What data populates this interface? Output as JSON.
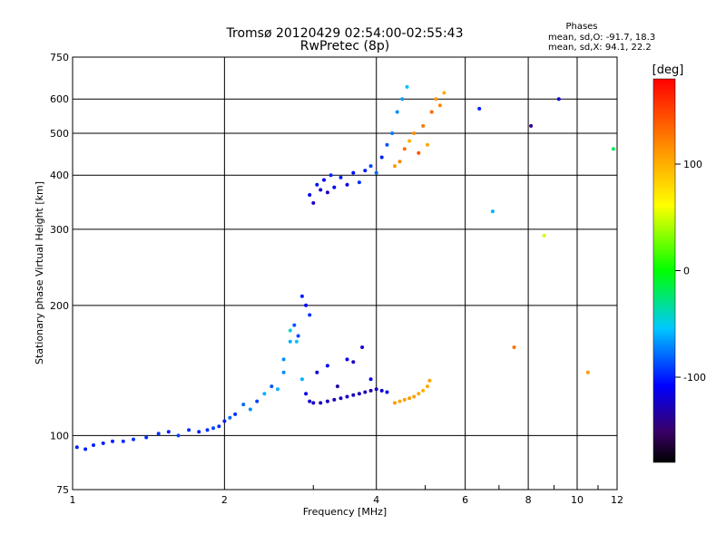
{
  "chart_data": {
    "type": "scatter",
    "title": "Tromsø 20120429 02:54:00-02:55:43",
    "subtitle": "RwPretec (8p)",
    "xlabel": "Frequency [MHz]",
    "ylabel": "Stationary phase Virtual Height [km]",
    "x_scale": "log",
    "y_scale": "log",
    "xlim": [
      1,
      12
    ],
    "ylim": [
      75,
      750
    ],
    "x_ticks": [
      1,
      2,
      4,
      6,
      8,
      10,
      12
    ],
    "x_tick_labels": [
      "1",
      "2",
      "4",
      "6",
      "8",
      "10",
      "12"
    ],
    "y_ticks": [
      75,
      100,
      200,
      300,
      400,
      500,
      600,
      750
    ],
    "y_tick_labels": [
      "75",
      "100",
      "200",
      "300",
      "400",
      "500",
      "600",
      "750"
    ],
    "grid": true,
    "phases_box": {
      "heading": "Phases",
      "line_o": "mean, sd,O: -91.7, 18.3",
      "line_x": "mean, sd,X:  94.1, 22.2"
    },
    "colorbar": {
      "label": "[deg]",
      "range": [
        -180,
        180
      ],
      "ticks": [
        100,
        0,
        -100
      ],
      "tick_labels": [
        "100",
        "0",
        "-100"
      ]
    },
    "series": [
      {
        "x": [
          1.02,
          1.06,
          1.1,
          1.15,
          1.2,
          1.26,
          1.32,
          1.4,
          1.48,
          1.55,
          1.62,
          1.7,
          1.78,
          1.85,
          1.9,
          1.95,
          2.0,
          2.05,
          2.1,
          2.18,
          2.25,
          2.32,
          2.4,
          2.48,
          2.55,
          2.62,
          2.7,
          2.78,
          2.85,
          2.9,
          2.95,
          3.0,
          3.1,
          3.2,
          3.3,
          3.4,
          3.5,
          3.6,
          3.7,
          3.8,
          3.9,
          4.0,
          4.1,
          4.2
        ],
        "y": [
          94,
          93,
          95,
          96,
          97,
          97,
          98,
          99,
          101,
          102,
          100,
          103,
          102,
          103,
          104,
          105,
          108,
          110,
          112,
          118,
          115,
          120,
          125,
          130,
          128,
          140,
          175,
          165,
          135,
          125,
          120,
          119,
          119,
          120,
          121,
          122,
          123,
          124,
          125,
          126,
          127,
          128,
          127,
          126
        ],
        "phase": [
          -100,
          -100,
          -100,
          -100,
          -100,
          -95,
          -95,
          -95,
          -95,
          -100,
          -90,
          -95,
          -100,
          -95,
          -90,
          -95,
          -100,
          -80,
          -95,
          -80,
          -70,
          -90,
          -60,
          -85,
          -60,
          -70,
          -45,
          -55,
          -60,
          -115,
          -120,
          -125,
          -125,
          -125,
          -130,
          -125,
          -125,
          -125,
          -125,
          -130,
          -130,
          -125,
          -120,
          -115
        ]
      },
      {
        "x": [
          2.62,
          2.7,
          2.75,
          2.8,
          2.85,
          2.9,
          2.95,
          3.05,
          3.2,
          3.35,
          3.5,
          3.6,
          3.75,
          3.9
        ],
        "y": [
          150,
          165,
          180,
          170,
          210,
          200,
          190,
          140,
          145,
          130,
          150,
          148,
          160,
          135
        ],
        "phase": [
          -70,
          -60,
          -85,
          -90,
          -100,
          -110,
          -95,
          -120,
          -110,
          -135,
          -110,
          -125,
          -120,
          -115
        ]
      },
      {
        "x": [
          4.35,
          4.45,
          4.55,
          4.65,
          4.75,
          4.85,
          4.95,
          5.05,
          5.1
        ],
        "y": [
          119,
          120,
          121,
          122,
          123,
          125,
          127,
          130,
          134
        ],
        "phase": [
          110,
          105,
          108,
          110,
          106,
          104,
          100,
          102,
          106
        ]
      },
      {
        "x": [
          2.95,
          3.0,
          3.05,
          3.1,
          3.15,
          3.2,
          3.25,
          3.3,
          3.4,
          3.5,
          3.6,
          3.7,
          3.8,
          3.9,
          4.0,
          4.1,
          4.2,
          4.3,
          4.4,
          4.5,
          4.6
        ],
        "y": [
          360,
          345,
          380,
          370,
          390,
          365,
          400,
          375,
          395,
          380,
          405,
          385,
          410,
          420,
          405,
          440,
          470,
          500,
          560,
          600,
          640
        ],
        "phase": [
          -110,
          -125,
          -105,
          -120,
          -110,
          -125,
          -100,
          -110,
          -100,
          -115,
          -105,
          -95,
          -100,
          -90,
          -80,
          -100,
          -85,
          -75,
          -70,
          -65,
          -55
        ]
      },
      {
        "x": [
          4.35,
          4.45,
          4.55,
          4.65,
          4.75,
          4.85,
          4.95,
          5.05,
          5.15,
          5.25,
          5.35,
          5.45
        ],
        "y": [
          420,
          430,
          460,
          480,
          500,
          450,
          520,
          470,
          560,
          600,
          580,
          620
        ],
        "phase": [
          110,
          120,
          130,
          100,
          115,
          140,
          125,
          105,
          135,
          110,
          120,
          100
        ]
      },
      {
        "x": [
          6.4,
          6.8,
          7.5,
          8.1,
          8.6,
          9.2,
          10.5,
          11.8
        ],
        "y": [
          570,
          330,
          160,
          520,
          290,
          600,
          140,
          460
        ],
        "phase": [
          -100,
          -60,
          130,
          -140,
          50,
          -120,
          110,
          -20
        ]
      }
    ]
  }
}
